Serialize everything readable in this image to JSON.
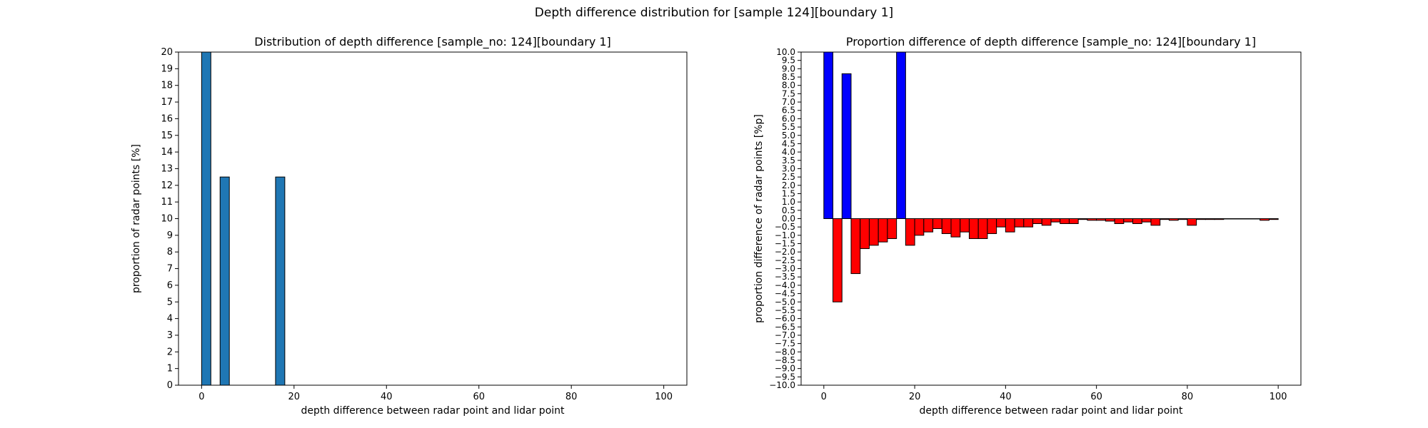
{
  "figure": {
    "suptitle": "Depth difference distribution for [sample 124][boundary 1]"
  },
  "chart_data": [
    {
      "type": "bar",
      "title": "Distribution of depth difference [sample_no: 124][boundary 1]",
      "xlabel": "depth difference between radar point and lidar point",
      "ylabel": "proportion of radar points [%]",
      "xlim": [
        -5,
        105
      ],
      "ylim": [
        0,
        20
      ],
      "x_ticks": [
        0,
        20,
        40,
        60,
        80,
        100
      ],
      "y_ticks": [
        0,
        1,
        2,
        3,
        4,
        5,
        6,
        7,
        8,
        9,
        10,
        11,
        12,
        13,
        14,
        15,
        16,
        17,
        18,
        19,
        20
      ],
      "bar_width": 2,
      "bar_color": "#1f77b4",
      "edge_color": "#000000",
      "bars": [
        {
          "x": 1,
          "value": 20.0
        },
        {
          "x": 5,
          "value": 12.5
        },
        {
          "x": 17,
          "value": 12.5
        }
      ]
    },
    {
      "type": "bar",
      "title": "Proportion difference of depth difference [sample_no: 124][boundary 1]",
      "xlabel": "depth difference between radar point and lidar point",
      "ylabel": "proportion difference of radar points [%p]",
      "xlim": [
        -5,
        105
      ],
      "ylim": [
        -10,
        10
      ],
      "x_ticks": [
        0,
        20,
        40,
        60,
        80,
        100
      ],
      "y_ticks": [
        -10.0,
        -9.5,
        -9.0,
        -8.5,
        -8.0,
        -7.5,
        -7.0,
        -6.5,
        -6.0,
        -5.5,
        -5.0,
        -4.5,
        -4.0,
        -3.5,
        -3.0,
        -2.5,
        -2.0,
        -1.5,
        -1.0,
        -0.5,
        0.0,
        0.5,
        1.0,
        1.5,
        2.0,
        2.5,
        3.0,
        3.5,
        4.0,
        4.5,
        5.0,
        5.5,
        6.0,
        6.5,
        7.0,
        7.5,
        8.0,
        8.5,
        9.0,
        9.5,
        10.0
      ],
      "bar_width": 2,
      "positive_color": "#0000ff",
      "negative_color": "#ff0000",
      "edge_color": "#000000",
      "bars": [
        {
          "x": 1,
          "value": 10.0
        },
        {
          "x": 3,
          "value": -5.0
        },
        {
          "x": 5,
          "value": 8.7
        },
        {
          "x": 7,
          "value": -3.3
        },
        {
          "x": 9,
          "value": -1.8
        },
        {
          "x": 11,
          "value": -1.6
        },
        {
          "x": 13,
          "value": -1.4
        },
        {
          "x": 15,
          "value": -1.2
        },
        {
          "x": 17,
          "value": 10.0
        },
        {
          "x": 19,
          "value": -1.6
        },
        {
          "x": 21,
          "value": -1.0
        },
        {
          "x": 23,
          "value": -0.8
        },
        {
          "x": 25,
          "value": -0.6
        },
        {
          "x": 27,
          "value": -0.9
        },
        {
          "x": 29,
          "value": -1.1
        },
        {
          "x": 31,
          "value": -0.8
        },
        {
          "x": 33,
          "value": -1.2
        },
        {
          "x": 35,
          "value": -1.2
        },
        {
          "x": 37,
          "value": -0.9
        },
        {
          "x": 39,
          "value": -0.5
        },
        {
          "x": 41,
          "value": -0.8
        },
        {
          "x": 43,
          "value": -0.5
        },
        {
          "x": 45,
          "value": -0.5
        },
        {
          "x": 47,
          "value": -0.3
        },
        {
          "x": 49,
          "value": -0.4
        },
        {
          "x": 51,
          "value": -0.2
        },
        {
          "x": 53,
          "value": -0.3
        },
        {
          "x": 55,
          "value": -0.3
        },
        {
          "x": 57,
          "value": -0.05
        },
        {
          "x": 59,
          "value": -0.1
        },
        {
          "x": 61,
          "value": -0.1
        },
        {
          "x": 63,
          "value": -0.15
        },
        {
          "x": 65,
          "value": -0.3
        },
        {
          "x": 67,
          "value": -0.2
        },
        {
          "x": 69,
          "value": -0.3
        },
        {
          "x": 71,
          "value": -0.2
        },
        {
          "x": 73,
          "value": -0.4
        },
        {
          "x": 75,
          "value": -0.05
        },
        {
          "x": 77,
          "value": -0.1
        },
        {
          "x": 79,
          "value": -0.05
        },
        {
          "x": 81,
          "value": -0.4
        },
        {
          "x": 83,
          "value": -0.05
        },
        {
          "x": 85,
          "value": -0.05
        },
        {
          "x": 87,
          "value": -0.05
        },
        {
          "x": 89,
          "value": -0.02
        },
        {
          "x": 91,
          "value": -0.02
        },
        {
          "x": 93,
          "value": -0.02
        },
        {
          "x": 95,
          "value": -0.02
        },
        {
          "x": 97,
          "value": -0.1
        },
        {
          "x": 99,
          "value": -0.05
        }
      ]
    }
  ]
}
